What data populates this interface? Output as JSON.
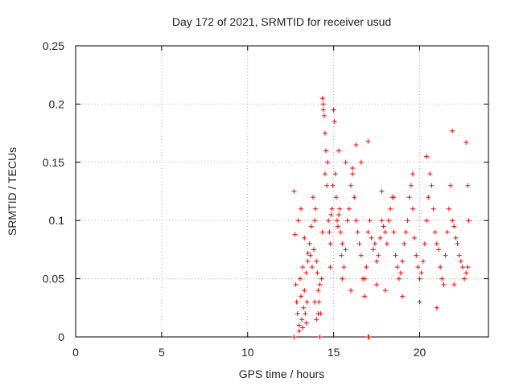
{
  "chart_data": {
    "type": "scatter",
    "title": "Day 172 of 2021, SRMTID for receiver usud",
    "xlabel": "GPS time / hours",
    "ylabel": "SRMTID / TECUs",
    "xlim": [
      0,
      24
    ],
    "ylim": [
      0,
      0.25
    ],
    "x_ticks": [
      {
        "value": 0,
        "label": "0"
      },
      {
        "value": 5,
        "label": "5"
      },
      {
        "value": 10,
        "label": "10"
      },
      {
        "value": 15,
        "label": "15"
      },
      {
        "value": 20,
        "label": "20"
      }
    ],
    "y_ticks": [
      {
        "value": 0,
        "label": "0"
      },
      {
        "value": 0.05,
        "label": "0.05"
      },
      {
        "value": 0.1,
        "label": "0.1"
      },
      {
        "value": 0.15,
        "label": "0.15"
      },
      {
        "value": 0.2,
        "label": "0.2"
      },
      {
        "value": 0.25,
        "label": "0.25"
      }
    ],
    "grid": true,
    "marker": "+",
    "series": [
      {
        "name": "SRMTID",
        "color": "#ff0000",
        "x": [
          12.7,
          12.8,
          12.85,
          12.9,
          13.0,
          13.05,
          13.1,
          13.15,
          13.2,
          13.25,
          13.3,
          13.35,
          13.4,
          13.45,
          13.5,
          12.75,
          12.95,
          13.1,
          13.3,
          13.5,
          13.6,
          13.65,
          13.7,
          13.75,
          13.8,
          13.85,
          13.9,
          13.95,
          14.0,
          14.05,
          14.1,
          14.15,
          14.2,
          14.25,
          14.3,
          14.35,
          14.4,
          14.45,
          14.5,
          14.55,
          14.6,
          14.65,
          14.7,
          14.75,
          14.8,
          14.85,
          14.9,
          14.95,
          15.0,
          15.05,
          15.1,
          15.15,
          15.2,
          15.25,
          15.3,
          15.35,
          15.4,
          15.45,
          15.5,
          15.6,
          15.7,
          15.8,
          15.9,
          16.0,
          16.1,
          16.2,
          16.3,
          16.4,
          16.5,
          16.6,
          16.7,
          16.8,
          16.9,
          17.0,
          17.1,
          17.2,
          17.3,
          17.4,
          17.5,
          17.6,
          17.7,
          17.8,
          17.9,
          18.0,
          18.1,
          18.2,
          18.3,
          18.4,
          18.5,
          18.6,
          18.7,
          18.8,
          18.9,
          19.0,
          19.1,
          19.2,
          19.3,
          19.4,
          19.5,
          19.6,
          19.7,
          19.8,
          19.9,
          20.0,
          20.1,
          20.2,
          20.3,
          20.4,
          20.5,
          20.6,
          20.7,
          20.8,
          20.9,
          21.0,
          21.1,
          21.2,
          21.3,
          21.4,
          21.5,
          21.6,
          21.7,
          21.8,
          21.9,
          22.0,
          22.1,
          22.2,
          22.3,
          22.4,
          22.5,
          22.6,
          22.7,
          22.8,
          22.85,
          14.35,
          14.4,
          14.5,
          15.0,
          15.3,
          16.3,
          16.6,
          17.0,
          12.7,
          14.2,
          17.0,
          17.05,
          13.0,
          13.2,
          13.4,
          13.9,
          14.0,
          14.1,
          22.7,
          22.8,
          21.9,
          20.4,
          19.6,
          18.5,
          17.8,
          16.1,
          15.7,
          22.0,
          21.0,
          20.0,
          19.0,
          18.0,
          17.5,
          16.8,
          16.0,
          15.5,
          14.8
        ],
        "y": [
          0.125,
          0.045,
          0.03,
          0.02,
          0.01,
          0.05,
          0.035,
          0.015,
          0.06,
          0.025,
          0.04,
          0.02,
          0.055,
          0.03,
          0.065,
          0.088,
          0.1,
          0.11,
          0.085,
          0.072,
          0.08,
          0.07,
          0.095,
          0.06,
          0.12,
          0.075,
          0.1,
          0.11,
          0.065,
          0.055,
          0.04,
          0.03,
          0.045,
          0.02,
          0.05,
          0.09,
          0.2,
          0.19,
          0.14,
          0.16,
          0.13,
          0.15,
          0.1,
          0.09,
          0.08,
          0.105,
          0.11,
          0.13,
          0.195,
          0.185,
          0.14,
          0.12,
          0.1,
          0.095,
          0.105,
          0.11,
          0.09,
          0.07,
          0.08,
          0.06,
          0.075,
          0.1,
          0.11,
          0.13,
          0.14,
          0.12,
          0.1,
          0.09,
          0.08,
          0.07,
          0.05,
          0.035,
          0.06,
          0.09,
          0.1,
          0.085,
          0.075,
          0.08,
          0.065,
          0.07,
          0.085,
          0.1,
          0.095,
          0.09,
          0.08,
          0.1,
          0.11,
          0.12,
          0.09,
          0.07,
          0.06,
          0.05,
          0.055,
          0.065,
          0.08,
          0.09,
          0.1,
          0.12,
          0.13,
          0.11,
          0.085,
          0.07,
          0.06,
          0.05,
          0.055,
          0.065,
          0.08,
          0.1,
          0.12,
          0.14,
          0.13,
          0.11,
          0.09,
          0.08,
          0.075,
          0.06,
          0.05,
          0.045,
          0.07,
          0.09,
          0.11,
          0.13,
          0.1,
          0.095,
          0.085,
          0.08,
          0.07,
          0.065,
          0.06,
          0.05,
          0.055,
          0.06,
          0.1,
          0.205,
          0.195,
          0.175,
          0.195,
          0.16,
          0.165,
          0.15,
          0.168,
          0.0,
          0.0,
          0.0,
          0.0,
          0.005,
          0.008,
          0.012,
          0.03,
          0.015,
          0.02,
          0.167,
          0.13,
          0.177,
          0.155,
          0.14,
          0.12,
          0.125,
          0.145,
          0.15,
          0.045,
          0.025,
          0.03,
          0.035,
          0.04,
          0.045,
          0.05,
          0.04,
          0.05,
          0.06
        ]
      }
    ]
  }
}
